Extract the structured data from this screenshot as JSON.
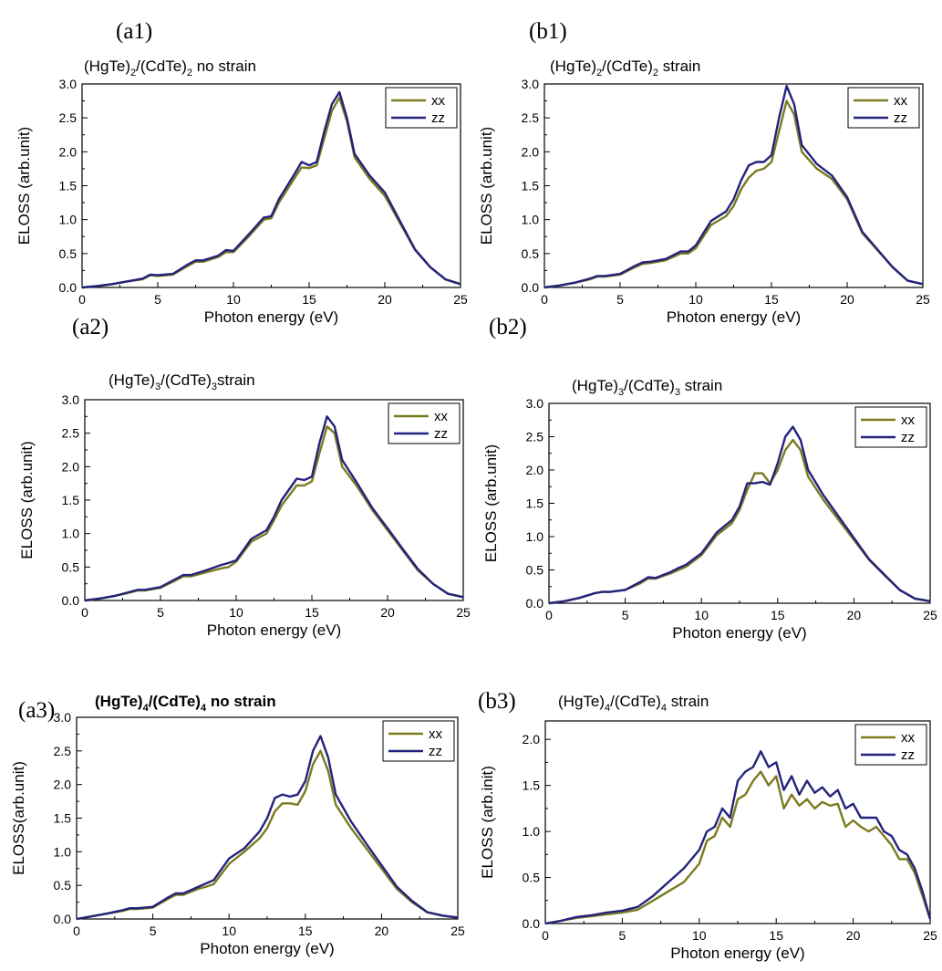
{
  "colors": {
    "xx": "#7c7a20",
    "zz": "#23237d",
    "axis": "#000000"
  },
  "chart_data": [
    {
      "panel": "(a1)",
      "type": "line",
      "title_main": "(HgTe)",
      "title_sub1": "2",
      "title_mid": "/(CdTe)",
      "title_sub2": "2",
      "title_tail": " no strain",
      "xlabel": "Photon energy (eV)",
      "ylabel": "ELOSS (arb.unit)",
      "xlim": [
        0,
        25
      ],
      "ylim": [
        0,
        3.0
      ],
      "xticks": [
        "0",
        "5",
        "10",
        "15",
        "20",
        "25"
      ],
      "yticks": [
        "0.0",
        "0.5",
        "1.0",
        "1.5",
        "2.0",
        "2.5",
        "3.0"
      ],
      "legend": [
        "xx",
        "zz"
      ],
      "series": [
        {
          "name": "xx",
          "x": [
            0,
            1,
            2,
            3,
            4,
            4.5,
            5,
            6,
            7,
            7.5,
            8,
            9,
            9.5,
            10,
            11,
            12,
            12.5,
            13,
            14,
            14.5,
            15,
            15.5,
            16,
            16.5,
            17,
            17.5,
            18,
            19,
            20,
            21,
            22,
            23,
            24,
            25
          ],
          "y": [
            0.0,
            0.02,
            0.05,
            0.09,
            0.12,
            0.18,
            0.17,
            0.19,
            0.32,
            0.38,
            0.38,
            0.45,
            0.52,
            0.52,
            0.75,
            1.0,
            1.02,
            1.25,
            1.6,
            1.77,
            1.76,
            1.8,
            2.2,
            2.6,
            2.8,
            2.45,
            1.92,
            1.6,
            1.35,
            0.95,
            0.55,
            0.3,
            0.12,
            0.05
          ]
        },
        {
          "name": "zz",
          "x": [
            0,
            1,
            2,
            3,
            4,
            4.5,
            5,
            6,
            7,
            7.5,
            8,
            9,
            9.5,
            10,
            11,
            12,
            12.5,
            13,
            14,
            14.5,
            15,
            15.5,
            16,
            16.5,
            17,
            17.5,
            18,
            19,
            20,
            21,
            22,
            23,
            24,
            25
          ],
          "y": [
            0.0,
            0.02,
            0.05,
            0.09,
            0.13,
            0.19,
            0.18,
            0.2,
            0.34,
            0.4,
            0.4,
            0.47,
            0.55,
            0.54,
            0.78,
            1.03,
            1.05,
            1.3,
            1.66,
            1.85,
            1.8,
            1.85,
            2.3,
            2.7,
            2.88,
            2.5,
            1.97,
            1.65,
            1.4,
            0.98,
            0.56,
            0.3,
            0.12,
            0.05
          ]
        }
      ]
    },
    {
      "panel": "(b1)",
      "type": "line",
      "title_main": "(HgTe)",
      "title_sub1": "2",
      "title_mid": "/(CdTe)",
      "title_sub2": "2",
      "title_tail": " strain",
      "xlabel": "Photon energy (eV)",
      "ylabel": "ELOSS (arb.unit)",
      "xlim": [
        0,
        25
      ],
      "ylim": [
        0,
        3.0
      ],
      "xticks": [
        "0",
        "5",
        "10",
        "15",
        "20",
        "25"
      ],
      "yticks": [
        "0.0",
        "0.5",
        "1.0",
        "1.5",
        "2.0",
        "2.5",
        "3.0"
      ],
      "legend": [
        "xx",
        "zz"
      ],
      "series": [
        {
          "name": "xx",
          "x": [
            0,
            1,
            2,
            3,
            3.5,
            4,
            5,
            6,
            6.5,
            7,
            8,
            9,
            9.5,
            10,
            11,
            12,
            12.5,
            13,
            13.5,
            14,
            14.5,
            15,
            15.5,
            16,
            16.5,
            17,
            18,
            19,
            20,
            21,
            22,
            23,
            24,
            25
          ],
          "y": [
            0.0,
            0.03,
            0.07,
            0.12,
            0.16,
            0.16,
            0.19,
            0.3,
            0.35,
            0.36,
            0.4,
            0.5,
            0.5,
            0.58,
            0.92,
            1.05,
            1.2,
            1.45,
            1.62,
            1.72,
            1.75,
            1.85,
            2.3,
            2.75,
            2.55,
            2.0,
            1.75,
            1.6,
            1.3,
            0.8,
            0.55,
            0.3,
            0.1,
            0.05
          ]
        },
        {
          "name": "zz",
          "x": [
            0,
            1,
            2,
            3,
            3.5,
            4,
            5,
            6,
            6.5,
            7,
            8,
            9,
            9.5,
            10,
            11,
            12,
            12.5,
            13,
            13.5,
            14,
            14.5,
            15,
            15.5,
            16,
            16.5,
            17,
            18,
            19,
            20,
            21,
            22,
            23,
            24,
            25
          ],
          "y": [
            0.0,
            0.03,
            0.07,
            0.13,
            0.17,
            0.17,
            0.2,
            0.32,
            0.37,
            0.38,
            0.42,
            0.53,
            0.53,
            0.62,
            0.98,
            1.12,
            1.3,
            1.58,
            1.8,
            1.85,
            1.85,
            1.95,
            2.5,
            2.97,
            2.7,
            2.1,
            1.82,
            1.65,
            1.33,
            0.82,
            0.56,
            0.3,
            0.1,
            0.05
          ]
        }
      ]
    },
    {
      "panel": "(a2)",
      "type": "line",
      "title_main": "(HgTe)",
      "title_sub1": "3",
      "title_mid": "/(CdTe)",
      "title_sub2": "3",
      "title_tail": "strain",
      "xlabel": "Photon energy (eV)",
      "ylabel": "ELOSS (arb.unit)",
      "xlim": [
        0,
        25
      ],
      "ylim": [
        0,
        3.0
      ],
      "xticks": [
        "0",
        "5",
        "10",
        "15",
        "20",
        "25"
      ],
      "yticks": [
        "0.0",
        "0.5",
        "1.0",
        "1.5",
        "2.0",
        "2.5",
        "3.0"
      ],
      "legend": [
        "xx",
        "zz"
      ],
      "series": [
        {
          "name": "xx",
          "x": [
            0,
            1,
            2,
            3,
            3.5,
            4,
            5,
            6,
            6.5,
            7,
            8,
            9,
            9.5,
            10,
            11,
            12,
            12.5,
            13,
            14,
            14.5,
            15,
            15.5,
            16,
            16.5,
            17,
            18,
            19,
            20,
            21,
            22,
            23,
            24,
            25
          ],
          "y": [
            0.0,
            0.03,
            0.07,
            0.12,
            0.15,
            0.15,
            0.19,
            0.3,
            0.36,
            0.36,
            0.42,
            0.48,
            0.5,
            0.58,
            0.88,
            1.0,
            1.2,
            1.42,
            1.72,
            1.72,
            1.78,
            2.2,
            2.6,
            2.5,
            2.0,
            1.7,
            1.35,
            1.05,
            0.75,
            0.45,
            0.25,
            0.1,
            0.05
          ]
        },
        {
          "name": "zz",
          "x": [
            0,
            1,
            2,
            3,
            3.5,
            4,
            5,
            6,
            6.5,
            7,
            8,
            9,
            9.5,
            10,
            11,
            12,
            12.5,
            13,
            14,
            14.5,
            15,
            15.5,
            16,
            16.5,
            17,
            18,
            19,
            20,
            21,
            22,
            23,
            24,
            25
          ],
          "y": [
            0.0,
            0.03,
            0.07,
            0.13,
            0.16,
            0.16,
            0.2,
            0.32,
            0.38,
            0.38,
            0.45,
            0.53,
            0.56,
            0.6,
            0.92,
            1.05,
            1.25,
            1.5,
            1.82,
            1.8,
            1.85,
            2.35,
            2.75,
            2.6,
            2.1,
            1.75,
            1.38,
            1.08,
            0.77,
            0.47,
            0.25,
            0.1,
            0.05
          ]
        }
      ]
    },
    {
      "panel": "(b2)",
      "type": "line",
      "title_main": "(HgTe)",
      "title_sub1": "3",
      "title_mid": "/(CdTe)",
      "title_sub2": "3",
      "title_tail": " strain",
      "xlabel": "Photon energy (eV)",
      "ylabel": "ELOSS (arb.unit)",
      "xlim": [
        0,
        25
      ],
      "ylim": [
        0,
        3.0
      ],
      "xticks": [
        "0",
        "5",
        "10",
        "15",
        "20",
        "25"
      ],
      "yticks": [
        "0.0",
        "0.5",
        "1.0",
        "1.5",
        "2.0",
        "2.5",
        "3.0"
      ],
      "legend": [
        "xx",
        "zz"
      ],
      "series": [
        {
          "name": "xx",
          "x": [
            0,
            1,
            2,
            3,
            3.5,
            4,
            5,
            6,
            6.5,
            7,
            8,
            8.5,
            9,
            10,
            11,
            12,
            12.5,
            13,
            13.5,
            14,
            14.5,
            15,
            15.5,
            16,
            16.5,
            17,
            18,
            19,
            20,
            21,
            22,
            23,
            24,
            25
          ],
          "y": [
            0.0,
            0.03,
            0.08,
            0.15,
            0.17,
            0.17,
            0.2,
            0.3,
            0.37,
            0.37,
            0.45,
            0.5,
            0.55,
            0.72,
            1.02,
            1.2,
            1.4,
            1.7,
            1.95,
            1.95,
            1.8,
            2.0,
            2.3,
            2.45,
            2.3,
            1.9,
            1.55,
            1.25,
            0.95,
            0.65,
            0.42,
            0.2,
            0.07,
            0.03
          ]
        },
        {
          "name": "zz",
          "x": [
            0,
            1,
            2,
            3,
            3.5,
            4,
            5,
            6,
            6.5,
            7,
            8,
            8.5,
            9,
            10,
            11,
            12,
            12.5,
            13,
            13.5,
            14,
            14.5,
            15,
            15.5,
            16,
            16.5,
            17,
            18,
            19,
            20,
            21,
            22,
            23,
            24,
            25
          ],
          "y": [
            0.0,
            0.03,
            0.08,
            0.15,
            0.17,
            0.17,
            0.2,
            0.32,
            0.39,
            0.38,
            0.47,
            0.53,
            0.58,
            0.75,
            1.06,
            1.25,
            1.45,
            1.8,
            1.8,
            1.82,
            1.78,
            2.1,
            2.5,
            2.65,
            2.45,
            2.0,
            1.62,
            1.3,
            0.98,
            0.66,
            0.43,
            0.2,
            0.07,
            0.03
          ]
        }
      ]
    },
    {
      "panel": "(a3)",
      "type": "line",
      "title_bold": true,
      "title_main": "(HgTe)",
      "title_sub1": "4",
      "title_mid": "/(CdTe)",
      "title_sub2": "4",
      "title_tail": " no strain",
      "xlabel": "Photon energy (eV)",
      "ylabel": "ELOSS(arb.unit)",
      "xlim": [
        0,
        25
      ],
      "ylim": [
        0,
        3.0
      ],
      "xticks": [
        "0",
        "5",
        "10",
        "15",
        "20",
        "25"
      ],
      "yticks": [
        "0.0",
        "0.5",
        "1.0",
        "1.5",
        "2.0",
        "2.5",
        "3.0"
      ],
      "legend": [
        "xx",
        "zz"
      ],
      "series": [
        {
          "name": "xx",
          "x": [
            0,
            1,
            2,
            3,
            3.5,
            4,
            5,
            6,
            6.5,
            7,
            8,
            8.5,
            9,
            10,
            11,
            12,
            12.5,
            13,
            13.5,
            14,
            14.5,
            15,
            15.5,
            16,
            16.5,
            17,
            18,
            19,
            20,
            21,
            22,
            23,
            24,
            25
          ],
          "y": [
            0.0,
            0.04,
            0.08,
            0.12,
            0.15,
            0.15,
            0.17,
            0.3,
            0.36,
            0.36,
            0.45,
            0.48,
            0.52,
            0.82,
            1.0,
            1.2,
            1.35,
            1.6,
            1.72,
            1.72,
            1.7,
            1.9,
            2.3,
            2.5,
            2.2,
            1.7,
            1.35,
            1.05,
            0.75,
            0.45,
            0.25,
            0.1,
            0.05,
            0.02
          ]
        },
        {
          "name": "zz",
          "x": [
            0,
            1,
            2,
            3,
            3.5,
            4,
            5,
            6,
            6.5,
            7,
            8,
            8.5,
            9,
            10,
            11,
            12,
            12.5,
            13,
            13.5,
            14,
            14.5,
            15,
            15.5,
            16,
            16.5,
            17,
            18,
            19,
            20,
            21,
            22,
            23,
            24,
            25
          ],
          "y": [
            0.0,
            0.04,
            0.08,
            0.13,
            0.16,
            0.16,
            0.18,
            0.32,
            0.38,
            0.38,
            0.48,
            0.53,
            0.58,
            0.9,
            1.05,
            1.3,
            1.5,
            1.8,
            1.85,
            1.82,
            1.85,
            2.05,
            2.5,
            2.72,
            2.4,
            1.85,
            1.45,
            1.12,
            0.8,
            0.48,
            0.27,
            0.1,
            0.05,
            0.02
          ]
        }
      ]
    },
    {
      "panel": "(b3)",
      "type": "line",
      "title_main": "(HgTe)",
      "title_sub1": "4",
      "title_mid": "/(CdTe)",
      "title_sub2": "4",
      "title_tail": "  strain",
      "xlabel": "Photon energy (eV)",
      "ylabel": "ELOSS (arb.init)",
      "xlim": [
        0,
        25
      ],
      "ylim": [
        0,
        2.2
      ],
      "xticks": [
        "0",
        "5",
        "10",
        "15",
        "20",
        "25"
      ],
      "yticks": [
        "0.0",
        "0.5",
        "1.0",
        "1.5",
        "2.0"
      ],
      "legend": [
        "xx",
        "zz"
      ],
      "series": [
        {
          "name": "xx",
          "x": [
            0,
            1,
            2,
            3,
            4,
            5,
            6,
            7,
            8,
            9,
            10,
            10.5,
            11,
            11.5,
            12,
            12.5,
            13,
            13.5,
            14,
            14.5,
            15,
            15.5,
            16,
            16.5,
            17,
            17.5,
            18,
            18.5,
            19,
            19.5,
            20,
            20.5,
            21,
            21.5,
            22,
            22.5,
            23,
            23.5,
            24,
            24.5,
            25
          ],
          "y": [
            0.0,
            0.03,
            0.06,
            0.08,
            0.1,
            0.12,
            0.15,
            0.25,
            0.35,
            0.45,
            0.65,
            0.9,
            0.95,
            1.15,
            1.05,
            1.35,
            1.4,
            1.55,
            1.65,
            1.5,
            1.6,
            1.25,
            1.4,
            1.28,
            1.35,
            1.25,
            1.32,
            1.28,
            1.3,
            1.05,
            1.12,
            1.05,
            1.0,
            1.05,
            0.95,
            0.85,
            0.7,
            0.7,
            0.55,
            0.3,
            0.05
          ]
        },
        {
          "name": "zz",
          "x": [
            0,
            1,
            2,
            3,
            4,
            5,
            6,
            7,
            8,
            9,
            10,
            10.5,
            11,
            11.5,
            12,
            12.5,
            13,
            13.5,
            14,
            14.5,
            15,
            15.5,
            16,
            16.5,
            17,
            17.5,
            18,
            18.5,
            19,
            19.5,
            20,
            20.5,
            21,
            21.5,
            22,
            22.5,
            23,
            23.5,
            24,
            24.5,
            25
          ],
          "y": [
            0.0,
            0.03,
            0.07,
            0.09,
            0.12,
            0.14,
            0.18,
            0.3,
            0.45,
            0.6,
            0.8,
            1.0,
            1.05,
            1.25,
            1.15,
            1.55,
            1.65,
            1.7,
            1.87,
            1.7,
            1.75,
            1.45,
            1.6,
            1.4,
            1.55,
            1.42,
            1.48,
            1.38,
            1.45,
            1.25,
            1.3,
            1.15,
            1.15,
            1.15,
            1.0,
            0.95,
            0.8,
            0.75,
            0.6,
            0.35,
            0.05
          ]
        }
      ]
    }
  ]
}
